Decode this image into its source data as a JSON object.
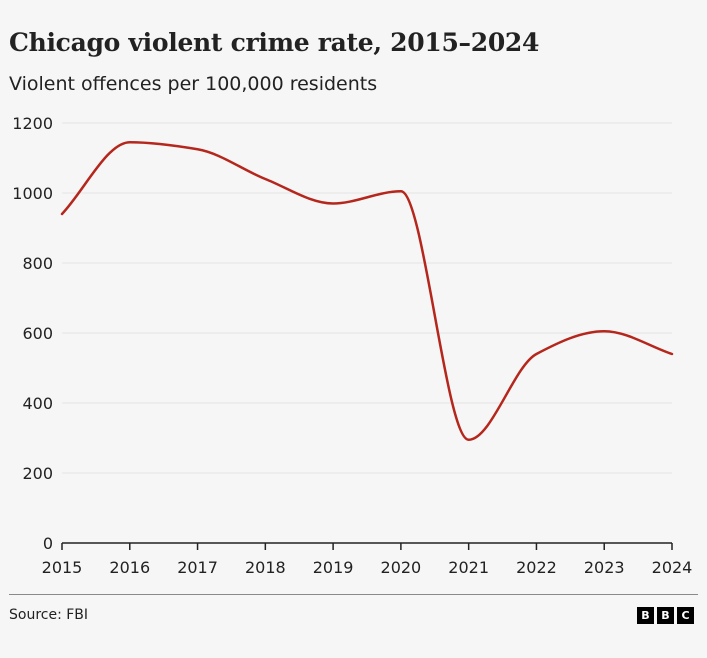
{
  "chart_data": {
    "type": "line",
    "title": "Chicago violent crime rate, 2015–2024",
    "subtitle": "Violent offences per 100,000 residents",
    "xlabel": "",
    "ylabel": "",
    "x": [
      2015,
      2016,
      2017,
      2018,
      2019,
      2020,
      2021,
      2022,
      2023,
      2024
    ],
    "series": [
      {
        "values": [
          940,
          1145,
          1125,
          1040,
          970,
          1005,
          295,
          540,
          605,
          540
        ],
        "color": "#b5261c"
      }
    ],
    "x_ticks": [
      "2015",
      "2016",
      "2017",
      "2018",
      "2019",
      "2020",
      "2021",
      "2022",
      "2023",
      "2024"
    ],
    "y_ticks": [
      "0",
      "200",
      "400",
      "600",
      "800",
      "1000",
      "1200"
    ],
    "y_tick_values": [
      0,
      200,
      400,
      600,
      800,
      1000,
      1200
    ],
    "ylim": [
      0,
      1200
    ],
    "xlim": [
      2015,
      2024
    ],
    "grid": true,
    "legend": "none"
  },
  "footer": {
    "source": "Source: FBI",
    "logo_letters": [
      "B",
      "B",
      "C"
    ]
  }
}
